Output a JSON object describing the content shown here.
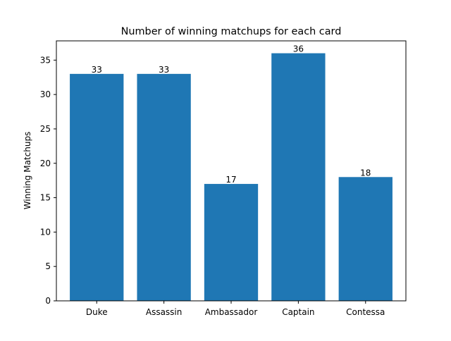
{
  "chart_data": {
    "type": "bar",
    "title": "Number of winning matchups for each card",
    "xlabel": "",
    "ylabel": "Winning Matchups",
    "categories": [
      "Duke",
      "Assassin",
      "Ambassador",
      "Captain",
      "Contessa"
    ],
    "values": [
      33,
      33,
      17,
      36,
      18
    ],
    "data_labels": [
      "33",
      "33",
      "17",
      "36",
      "18"
    ],
    "ylim": [
      0,
      37.8
    ],
    "yticks": [
      0,
      5,
      10,
      15,
      20,
      25,
      30,
      35
    ],
    "grid": false,
    "legend": "none",
    "colors": {
      "bar": "#1f77b4",
      "axis": "#000000",
      "background": "#ffffff"
    }
  }
}
